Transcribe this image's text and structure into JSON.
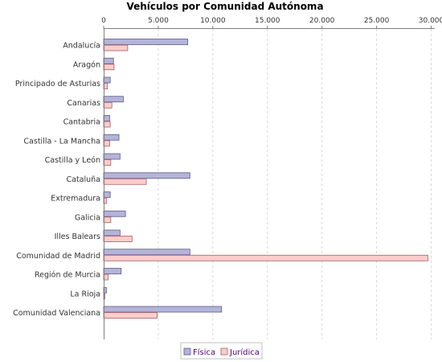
{
  "chart_data": {
    "type": "bar",
    "orientation": "horizontal",
    "title": "Vehículos por Comunidad Autónoma",
    "xlabel": "",
    "ylabel": "",
    "xlim": [
      0,
      30000
    ],
    "ticks": [
      0,
      5000,
      10000,
      15000,
      20000,
      25000,
      30000
    ],
    "tick_labels": [
      "0",
      "5.000",
      "10.000",
      "15.000",
      "20.000",
      "25.000",
      "30.000"
    ],
    "axis_position": "top",
    "grid": true,
    "legend_position": "bottom",
    "categories": [
      "Andalucía",
      "Aragón",
      "Principado de Asturias",
      "Canarias",
      "Cantabria",
      "Castilla - La Mancha",
      "Castilla y León",
      "Cataluña",
      "Extremadura",
      "Galicia",
      "Illes Balears",
      "Comunidad de Madrid",
      "Región de Murcia",
      "La Rioja",
      "Comunidad Valenciana"
    ],
    "series": [
      {
        "name": "Física",
        "color": "#b4b4d8",
        "stroke": "#5a5a8c",
        "values": [
          7700,
          900,
          600,
          1800,
          550,
          1400,
          1500,
          7900,
          600,
          2000,
          1500,
          7900,
          1600,
          250,
          10800
        ]
      },
      {
        "name": "Jurídica",
        "color": "#ffcccc",
        "stroke": "#a06060",
        "values": [
          2200,
          950,
          350,
          750,
          600,
          550,
          650,
          3900,
          250,
          650,
          2600,
          29700,
          400,
          100,
          4900
        ]
      }
    ]
  }
}
